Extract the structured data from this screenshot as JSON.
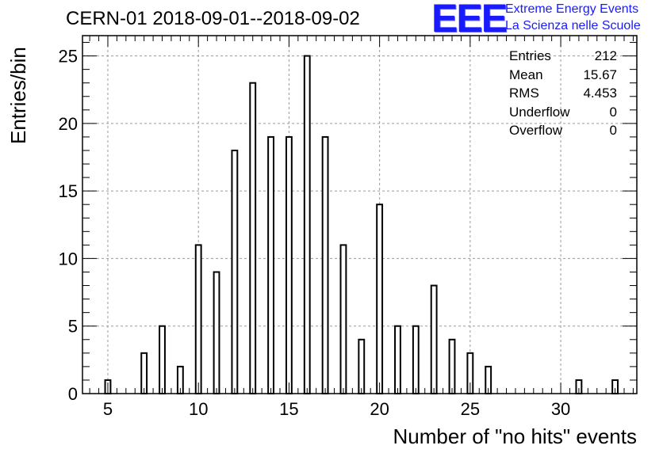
{
  "header": {
    "title": "CERN-01 2018-09-01--2018-09-02"
  },
  "logo": {
    "letters": "EEE",
    "line1": "Extreme Energy Events",
    "line2": "La Scienza nelle Scuole",
    "color": "#1a1aff"
  },
  "stats": {
    "entries_label": "Entries",
    "entries_value": "212",
    "mean_label": "Mean",
    "mean_value": "15.67",
    "rms_label": "RMS",
    "rms_value": "4.453",
    "underflow_label": "Underflow",
    "underflow_value": "0",
    "overflow_label": "Overflow",
    "overflow_value": "0"
  },
  "chart_data": {
    "type": "bar",
    "title": "CERN-01 2018-09-01--2018-09-02",
    "xlabel": "Number of \"no hits\" events",
    "ylabel": "Entries/bin",
    "xlim": [
      3.6,
      34.2
    ],
    "ylim": [
      0,
      26.5
    ],
    "grid": true,
    "legend": "none",
    "bar_color": "#ffffff",
    "edge_color": "#000000",
    "x_ticks": [
      5,
      10,
      15,
      20,
      25,
      30
    ],
    "y_ticks": [
      0,
      5,
      10,
      15,
      20,
      25
    ],
    "x": [
      5,
      7,
      8,
      9,
      10,
      11,
      12,
      13,
      14,
      15,
      16,
      17,
      18,
      19,
      20,
      21,
      22,
      23,
      24,
      25,
      26,
      31,
      33
    ],
    "values": [
      1,
      3,
      5,
      2,
      11,
      9,
      18,
      23,
      19,
      19,
      25,
      19,
      11,
      4,
      14,
      5,
      5,
      8,
      4,
      3,
      2,
      1,
      1
    ]
  }
}
